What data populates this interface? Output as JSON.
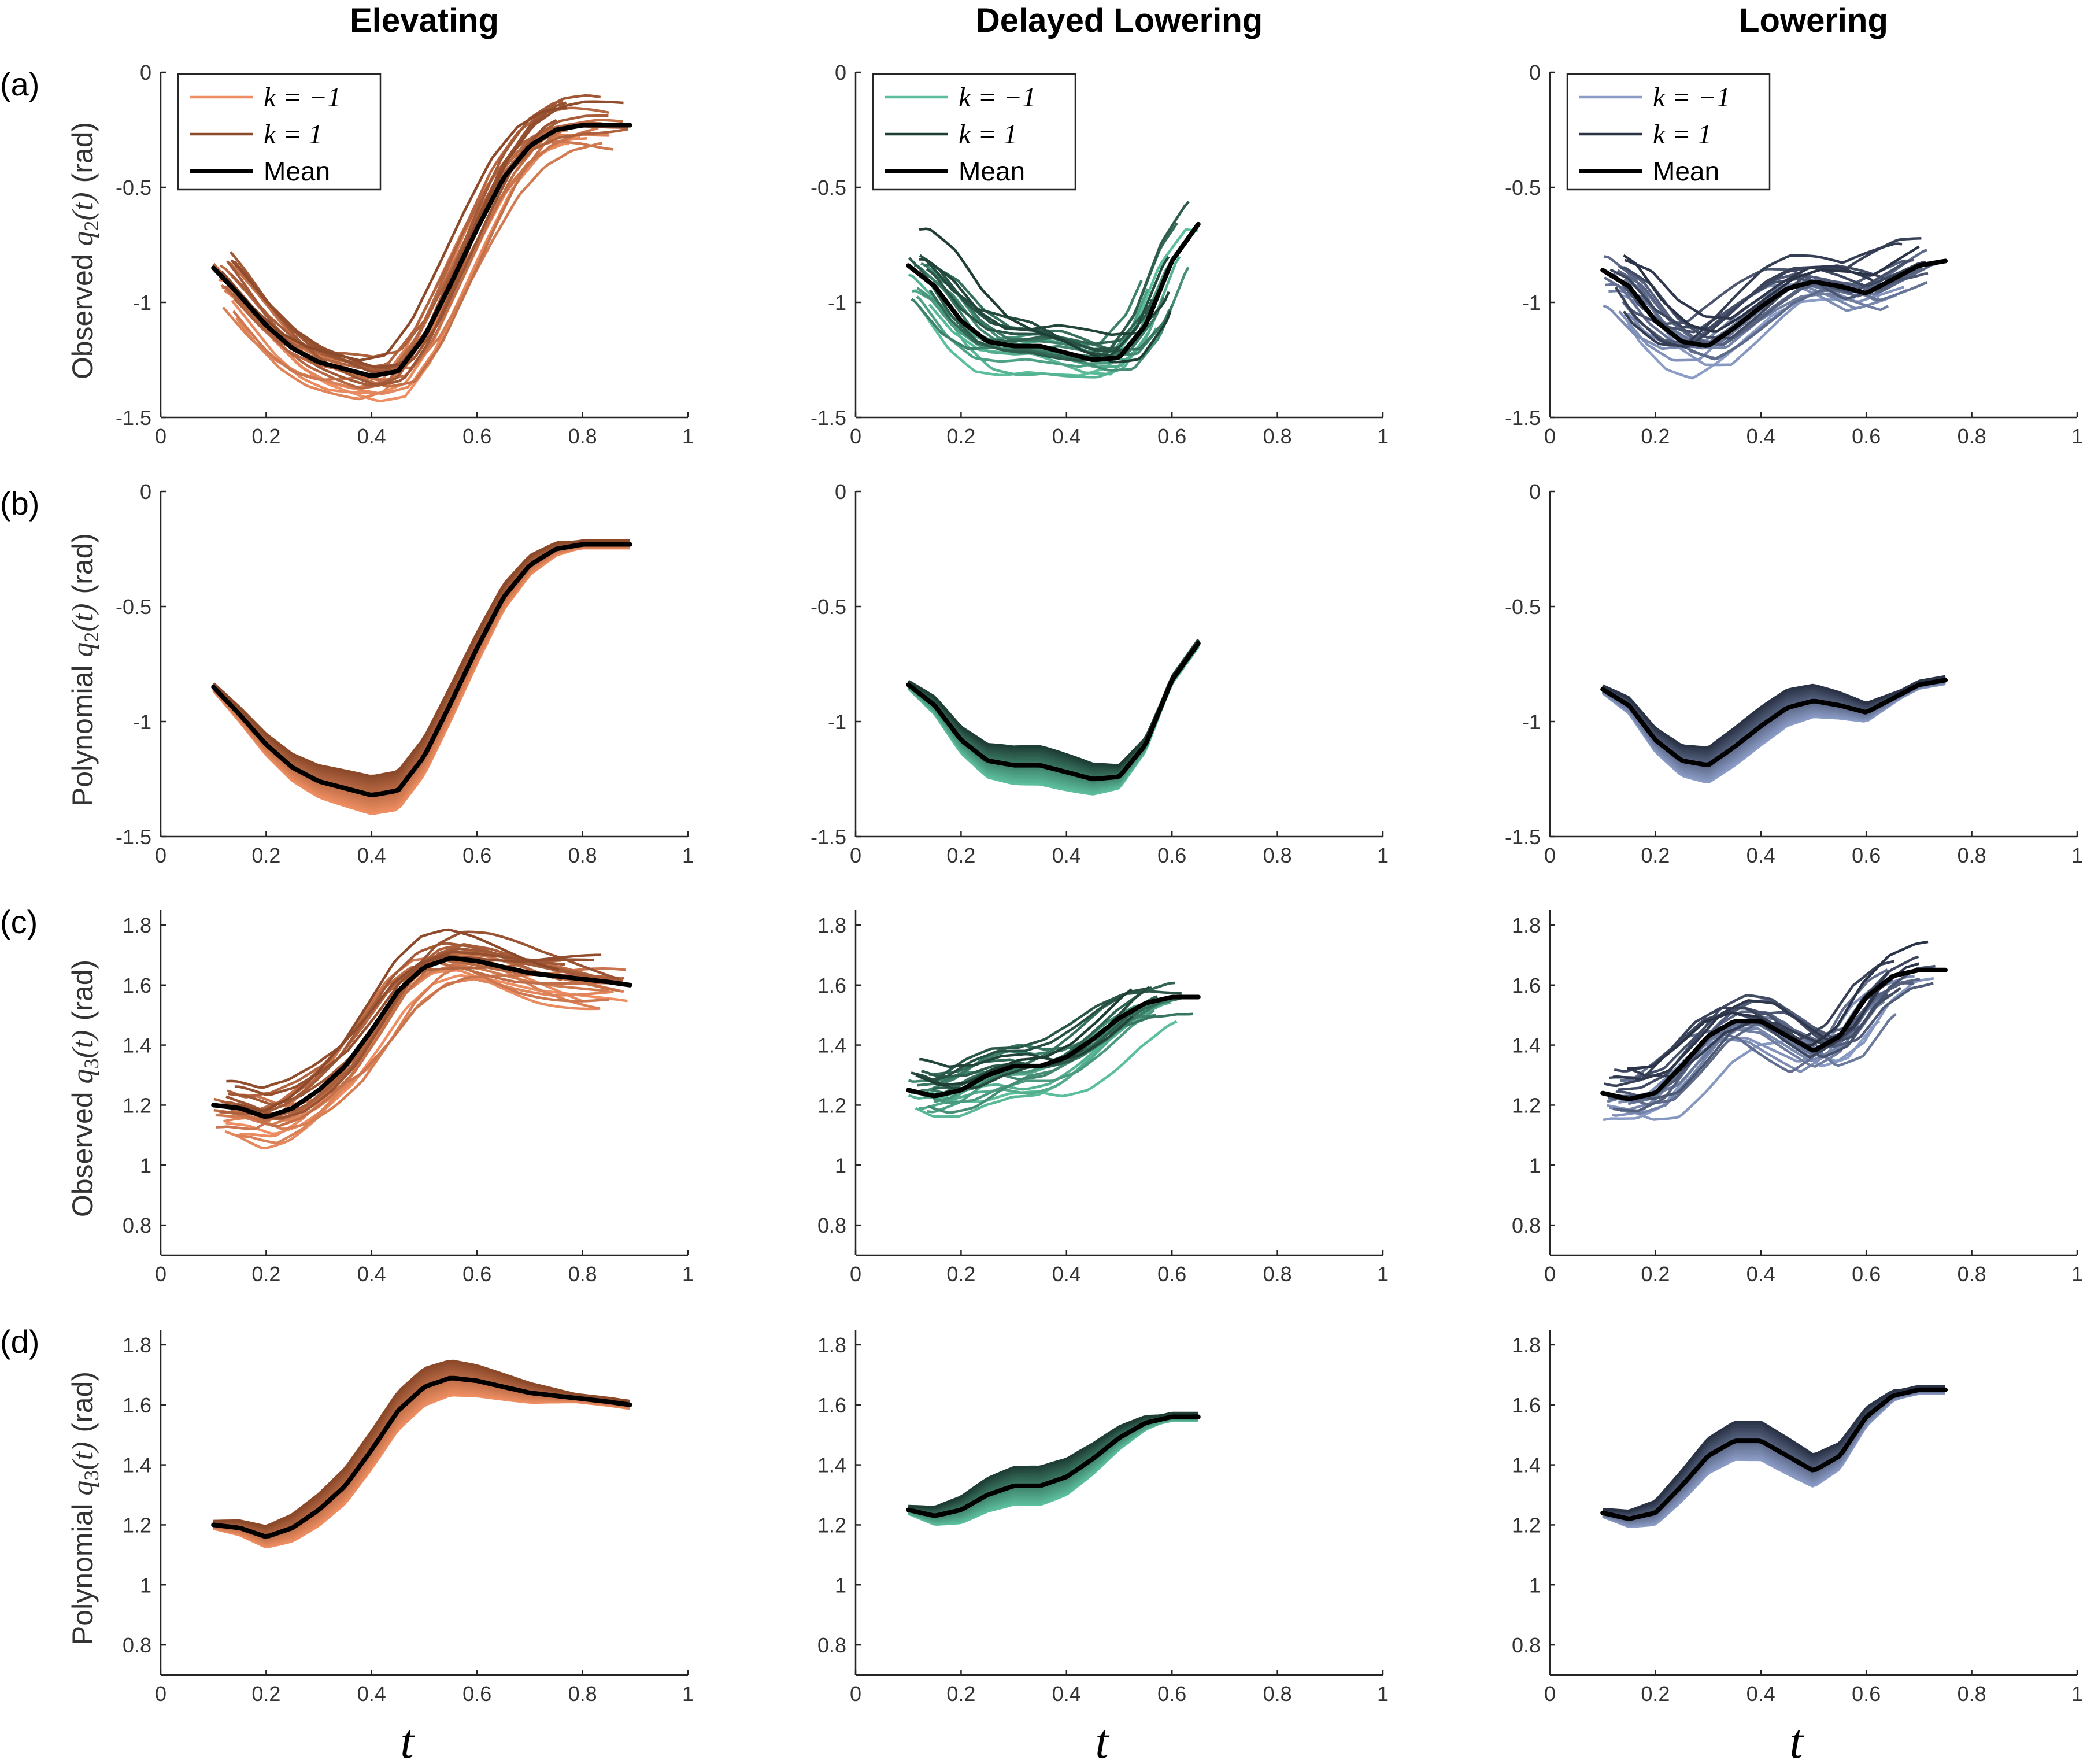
{
  "columns": [
    {
      "title": "Elevating",
      "light": "#ee8e62",
      "dark": "#8c4a2b"
    },
    {
      "title": "Delayed Lowering",
      "light": "#5cbf9c",
      "dark": "#1f3f36"
    },
    {
      "title": "Lowering",
      "light": "#8b9cc6",
      "dark": "#2b3347"
    }
  ],
  "rows": [
    {
      "label": "(a)",
      "ylabel_word": "Observed",
      "ylabel_var": "q",
      "ylabel_sub": "2",
      "ylabel_arg": "(t)",
      "ylabel_unit": "(rad)",
      "kind": "observed"
    },
    {
      "label": "(b)",
      "ylabel_word": "Polynomial",
      "ylabel_var": "q",
      "ylabel_sub": "2",
      "ylabel_arg": "(t)",
      "ylabel_unit": "(rad)",
      "kind": "polynomial"
    },
    {
      "label": "(c)",
      "ylabel_word": "Observed",
      "ylabel_var": "q",
      "ylabel_sub": "3",
      "ylabel_arg": "(t)",
      "ylabel_unit": "(rad)",
      "kind": "observed"
    },
    {
      "label": "(d)",
      "ylabel_word": "Polynomial",
      "ylabel_var": "q",
      "ylabel_sub": "3",
      "ylabel_arg": "(t)",
      "ylabel_unit": "(rad)",
      "kind": "polynomial"
    }
  ],
  "legend": {
    "entries": [
      "k = −1",
      "k = 1",
      "Mean"
    ]
  },
  "xlabel": "t",
  "chart_data": [
    {
      "type": "line",
      "title": "Elevating",
      "row": "(a)",
      "xlim": [
        0,
        1
      ],
      "ylim": [
        -1.5,
        0
      ],
      "xticks": [
        "0",
        "0.2",
        "0.4",
        "0.6",
        "0.8",
        "1"
      ],
      "yticks": [
        "-1.5",
        "-1",
        "-0.5",
        "0"
      ],
      "mean": {
        "x": [
          0.1,
          0.15,
          0.2,
          0.25,
          0.3,
          0.35,
          0.4,
          0.45,
          0.5,
          0.55,
          0.6,
          0.65,
          0.7,
          0.75,
          0.8,
          0.85,
          0.89
        ],
        "y": [
          -0.85,
          -0.97,
          -1.1,
          -1.2,
          -1.26,
          -1.29,
          -1.32,
          -1.3,
          -1.15,
          -0.92,
          -0.68,
          -0.46,
          -0.32,
          -0.25,
          -0.23,
          -0.23,
          -0.23
        ]
      }
    },
    {
      "type": "line",
      "title": "Delayed Lowering",
      "row": "(a)",
      "xlim": [
        0,
        1
      ],
      "ylim": [
        -1.5,
        0
      ],
      "xticks": [
        "0",
        "0.2",
        "0.4",
        "0.6",
        "0.8",
        "1"
      ],
      "yticks": [
        "-1.5",
        "-1",
        "-0.5",
        "0"
      ],
      "mean": {
        "x": [
          0.1,
          0.15,
          0.2,
          0.25,
          0.3,
          0.35,
          0.4,
          0.45,
          0.5,
          0.55,
          0.6,
          0.65
        ],
        "y": [
          -0.84,
          -0.93,
          -1.08,
          -1.17,
          -1.19,
          -1.19,
          -1.22,
          -1.25,
          -1.24,
          -1.1,
          -0.82,
          -0.66
        ]
      }
    },
    {
      "type": "line",
      "title": "Lowering",
      "row": "(a)",
      "xlim": [
        0,
        1
      ],
      "ylim": [
        -1.5,
        0
      ],
      "xticks": [
        "0",
        "0.2",
        "0.4",
        "0.6",
        "0.8",
        "1"
      ],
      "yticks": [
        "-1.5",
        "-1",
        "-0.5",
        "0"
      ],
      "mean": {
        "x": [
          0.1,
          0.15,
          0.2,
          0.25,
          0.3,
          0.35,
          0.4,
          0.45,
          0.5,
          0.55,
          0.6,
          0.65,
          0.7,
          0.75
        ],
        "y": [
          -0.86,
          -0.93,
          -1.08,
          -1.17,
          -1.19,
          -1.11,
          -1.02,
          -0.94,
          -0.91,
          -0.93,
          -0.96,
          -0.9,
          -0.84,
          -0.82
        ]
      }
    },
    {
      "type": "line",
      "title": "Elevating",
      "row": "(b)",
      "xlim": [
        0,
        1
      ],
      "ylim": [
        -1.5,
        0
      ],
      "xticks": [
        "0",
        "0.2",
        "0.4",
        "0.6",
        "0.8",
        "1"
      ],
      "yticks": [
        "-1.5",
        "-1",
        "-0.5",
        "0"
      ],
      "mean": {
        "x": [
          0.1,
          0.15,
          0.2,
          0.25,
          0.3,
          0.35,
          0.4,
          0.45,
          0.5,
          0.55,
          0.6,
          0.65,
          0.7,
          0.75,
          0.8,
          0.85,
          0.89
        ],
        "y": [
          -0.85,
          -0.97,
          -1.1,
          -1.2,
          -1.26,
          -1.29,
          -1.32,
          -1.3,
          -1.15,
          -0.92,
          -0.68,
          -0.46,
          -0.32,
          -0.25,
          -0.23,
          -0.23,
          -0.23
        ]
      }
    },
    {
      "type": "line",
      "title": "Delayed Lowering",
      "row": "(b)",
      "xlim": [
        0,
        1
      ],
      "ylim": [
        -1.5,
        0
      ],
      "xticks": [
        "0",
        "0.2",
        "0.4",
        "0.6",
        "0.8",
        "1"
      ],
      "yticks": [
        "-1.5",
        "-1",
        "-0.5",
        "0"
      ],
      "mean": {
        "x": [
          0.1,
          0.15,
          0.2,
          0.25,
          0.3,
          0.35,
          0.4,
          0.45,
          0.5,
          0.55,
          0.6,
          0.65
        ],
        "y": [
          -0.84,
          -0.93,
          -1.08,
          -1.17,
          -1.19,
          -1.19,
          -1.22,
          -1.25,
          -1.24,
          -1.1,
          -0.82,
          -0.66
        ]
      }
    },
    {
      "type": "line",
      "title": "Lowering",
      "row": "(b)",
      "xlim": [
        0,
        1
      ],
      "ylim": [
        -1.5,
        0
      ],
      "xticks": [
        "0",
        "0.2",
        "0.4",
        "0.6",
        "0.8",
        "1"
      ],
      "yticks": [
        "-1.5",
        "-1",
        "-0.5",
        "0"
      ],
      "mean": {
        "x": [
          0.1,
          0.15,
          0.2,
          0.25,
          0.3,
          0.35,
          0.4,
          0.45,
          0.5,
          0.55,
          0.6,
          0.65,
          0.7,
          0.75
        ],
        "y": [
          -0.86,
          -0.93,
          -1.08,
          -1.17,
          -1.19,
          -1.11,
          -1.02,
          -0.94,
          -0.91,
          -0.93,
          -0.96,
          -0.9,
          -0.84,
          -0.82
        ]
      }
    },
    {
      "type": "line",
      "title": "Elevating",
      "row": "(c)",
      "xlim": [
        0,
        1
      ],
      "ylim": [
        0.7,
        1.85
      ],
      "xticks": [
        "0",
        "0.2",
        "0.4",
        "0.6",
        "0.8",
        "1"
      ],
      "yticks": [
        "0.8",
        "1",
        "1.2",
        "1.4",
        "1.6",
        "1.8"
      ],
      "mean": {
        "x": [
          0.1,
          0.15,
          0.2,
          0.25,
          0.3,
          0.35,
          0.4,
          0.45,
          0.5,
          0.55,
          0.6,
          0.65,
          0.7,
          0.75,
          0.8,
          0.85,
          0.89
        ],
        "y": [
          1.2,
          1.19,
          1.16,
          1.19,
          1.25,
          1.33,
          1.45,
          1.58,
          1.66,
          1.69,
          1.68,
          1.66,
          1.64,
          1.63,
          1.62,
          1.61,
          1.6
        ]
      }
    },
    {
      "type": "line",
      "title": "Delayed Lowering",
      "row": "(c)",
      "xlim": [
        0,
        1
      ],
      "ylim": [
        0.7,
        1.85
      ],
      "xticks": [
        "0",
        "0.2",
        "0.4",
        "0.6",
        "0.8",
        "1"
      ],
      "yticks": [
        "0.8",
        "1",
        "1.2",
        "1.4",
        "1.6",
        "1.8"
      ],
      "mean": {
        "x": [
          0.1,
          0.15,
          0.2,
          0.25,
          0.3,
          0.35,
          0.4,
          0.45,
          0.5,
          0.55,
          0.6,
          0.65
        ],
        "y": [
          1.25,
          1.23,
          1.25,
          1.3,
          1.33,
          1.33,
          1.36,
          1.42,
          1.49,
          1.54,
          1.56,
          1.56
        ]
      }
    },
    {
      "type": "line",
      "title": "Lowering",
      "row": "(c)",
      "xlim": [
        0,
        1
      ],
      "ylim": [
        0.7,
        1.85
      ],
      "xticks": [
        "0",
        "0.2",
        "0.4",
        "0.6",
        "0.8",
        "1"
      ],
      "yticks": [
        "0.8",
        "1",
        "1.2",
        "1.4",
        "1.6",
        "1.8"
      ],
      "mean": {
        "x": [
          0.1,
          0.15,
          0.2,
          0.25,
          0.3,
          0.35,
          0.4,
          0.45,
          0.5,
          0.55,
          0.6,
          0.65,
          0.7,
          0.75
        ],
        "y": [
          1.24,
          1.22,
          1.24,
          1.33,
          1.43,
          1.48,
          1.48,
          1.43,
          1.38,
          1.43,
          1.56,
          1.63,
          1.65,
          1.65
        ]
      }
    },
    {
      "type": "line",
      "title": "Elevating",
      "row": "(d)",
      "xlim": [
        0,
        1
      ],
      "ylim": [
        0.7,
        1.85
      ],
      "xticks": [
        "0",
        "0.2",
        "0.4",
        "0.6",
        "0.8",
        "1"
      ],
      "yticks": [
        "0.8",
        "1",
        "1.2",
        "1.4",
        "1.6",
        "1.8"
      ],
      "mean": {
        "x": [
          0.1,
          0.15,
          0.2,
          0.25,
          0.3,
          0.35,
          0.4,
          0.45,
          0.5,
          0.55,
          0.6,
          0.65,
          0.7,
          0.75,
          0.8,
          0.85,
          0.89
        ],
        "y": [
          1.2,
          1.19,
          1.16,
          1.19,
          1.25,
          1.33,
          1.45,
          1.58,
          1.66,
          1.69,
          1.68,
          1.66,
          1.64,
          1.63,
          1.62,
          1.61,
          1.6
        ]
      }
    },
    {
      "type": "line",
      "title": "Delayed Lowering",
      "row": "(d)",
      "xlim": [
        0,
        1
      ],
      "ylim": [
        0.7,
        1.85
      ],
      "xticks": [
        "0",
        "0.2",
        "0.4",
        "0.6",
        "0.8",
        "1"
      ],
      "yticks": [
        "0.8",
        "1",
        "1.2",
        "1.4",
        "1.6",
        "1.8"
      ],
      "mean": {
        "x": [
          0.1,
          0.15,
          0.2,
          0.25,
          0.3,
          0.35,
          0.4,
          0.45,
          0.5,
          0.55,
          0.6,
          0.65
        ],
        "y": [
          1.25,
          1.23,
          1.25,
          1.3,
          1.33,
          1.33,
          1.36,
          1.42,
          1.49,
          1.54,
          1.56,
          1.56
        ]
      }
    },
    {
      "type": "line",
      "title": "Lowering",
      "row": "(d)",
      "xlim": [
        0,
        1
      ],
      "ylim": [
        0.7,
        1.85
      ],
      "xticks": [
        "0",
        "0.2",
        "0.4",
        "0.6",
        "0.8",
        "1"
      ],
      "yticks": [
        "0.8",
        "1",
        "1.2",
        "1.4",
        "1.6",
        "1.8"
      ],
      "mean": {
        "x": [
          0.1,
          0.15,
          0.2,
          0.25,
          0.3,
          0.35,
          0.4,
          0.45,
          0.5,
          0.55,
          0.6,
          0.65,
          0.7,
          0.75
        ],
        "y": [
          1.24,
          1.22,
          1.24,
          1.33,
          1.43,
          1.48,
          1.48,
          1.43,
          1.38,
          1.43,
          1.56,
          1.63,
          1.65,
          1.65
        ]
      }
    }
  ]
}
